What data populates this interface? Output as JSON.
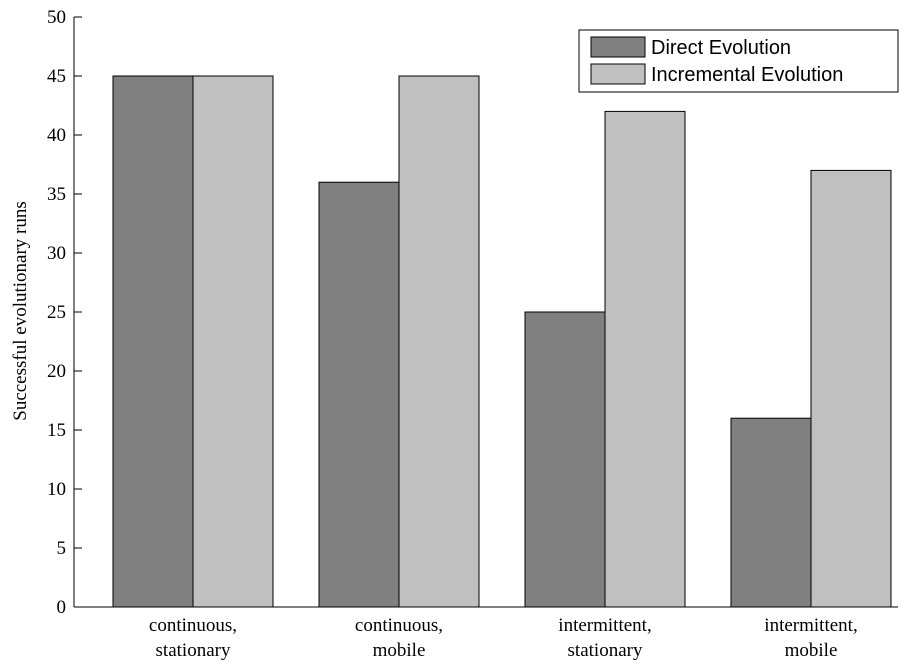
{
  "chart_data": {
    "type": "bar",
    "title": "",
    "xlabel": "",
    "ylabel": "Successful evolutionary runs",
    "ylim": [
      0,
      50
    ],
    "yticks": [
      0,
      5,
      10,
      15,
      20,
      25,
      30,
      35,
      40,
      45,
      50
    ],
    "categories": [
      [
        "continuous,",
        "stationary"
      ],
      [
        "continuous,",
        "mobile"
      ],
      [
        "intermittent,",
        "stationary"
      ],
      [
        "intermittent,",
        "mobile"
      ]
    ],
    "series": [
      {
        "name": "Direct Evolution",
        "color": "#808080",
        "values": [
          45,
          36,
          25,
          16
        ]
      },
      {
        "name": "Incremental Evolution",
        "color": "#c0c0c0",
        "values": [
          45,
          45,
          42,
          37
        ]
      }
    ],
    "legend_position": "top-right",
    "grid": false
  }
}
